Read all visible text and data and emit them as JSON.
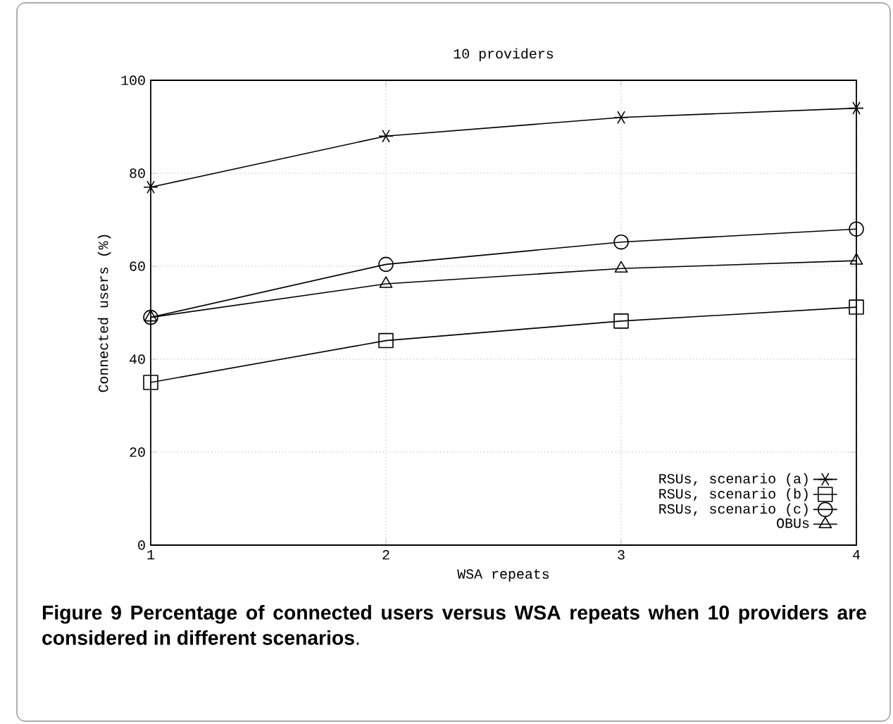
{
  "chart_data": {
    "type": "line",
    "title": "10 providers",
    "xlabel": "WSA repeats",
    "ylabel": "Connected users (%)",
    "x": [
      1,
      2,
      3,
      4
    ],
    "series": [
      {
        "name": "RSUs, scenario (a)",
        "color": "#000000",
        "marker": "cross",
        "values": [
          77,
          88,
          92,
          94
        ]
      },
      {
        "name": "RSUs, scenario (b)",
        "color": "#000000",
        "marker": "square",
        "values": [
          35,
          44,
          48.2,
          51.2
        ]
      },
      {
        "name": "RSUs, scenario (c)",
        "color": "#000000",
        "marker": "circle",
        "values": [
          49,
          60.4,
          65.2,
          68
        ]
      },
      {
        "name": "OBUs",
        "color": "#000000",
        "marker": "triangle",
        "values": [
          49,
          56.2,
          59.5,
          61.2
        ]
      }
    ],
    "xlim": [
      1,
      4
    ],
    "ylim": [
      0,
      100
    ],
    "xticks": [
      1,
      2,
      3,
      4
    ],
    "yticks": [
      0,
      20,
      40,
      60,
      80,
      100
    ],
    "grid": true,
    "legend": "bottom right",
    "line_style": "solid",
    "annotations": [
      "**Figure 9** **Percentage of connected users versus WSA repeats when 10 providers are considered in different scenarios**."
    ]
  }
}
